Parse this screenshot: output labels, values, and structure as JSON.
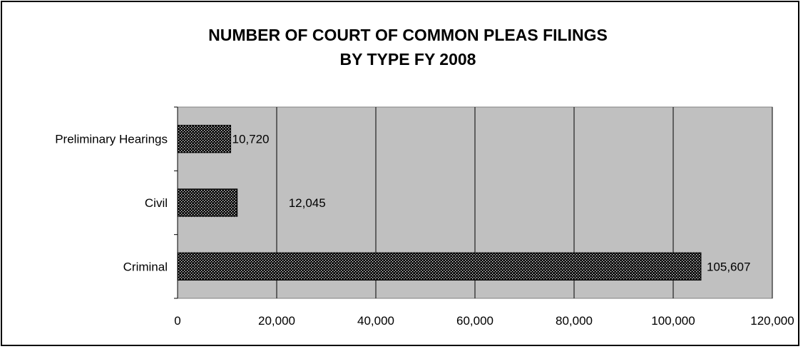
{
  "chart_data": {
    "type": "bar",
    "orientation": "horizontal",
    "title": "NUMBER OF COURT OF COMMON PLEAS FILINGS",
    "subtitle": "BY TYPE FY 2008",
    "categories": [
      "Preliminary Hearings",
      "Civil",
      "Criminal"
    ],
    "values": [
      10720,
      12045,
      105607
    ],
    "data_labels": [
      "10,720",
      "12,045",
      "105,607"
    ],
    "xlim": [
      0,
      120000
    ],
    "x_ticks": [
      0,
      20000,
      40000,
      60000,
      80000,
      100000,
      120000
    ],
    "x_tick_labels": [
      "0",
      "20,000",
      "40,000",
      "60,000",
      "80,000",
      "100,000",
      "120,000"
    ],
    "grid": "vertical",
    "legend": "none",
    "colors": {
      "plot_background": "#c0c0c0",
      "bar_fill": "#000000",
      "bar_dots": "#ffffff",
      "gridline": "#000000"
    }
  }
}
